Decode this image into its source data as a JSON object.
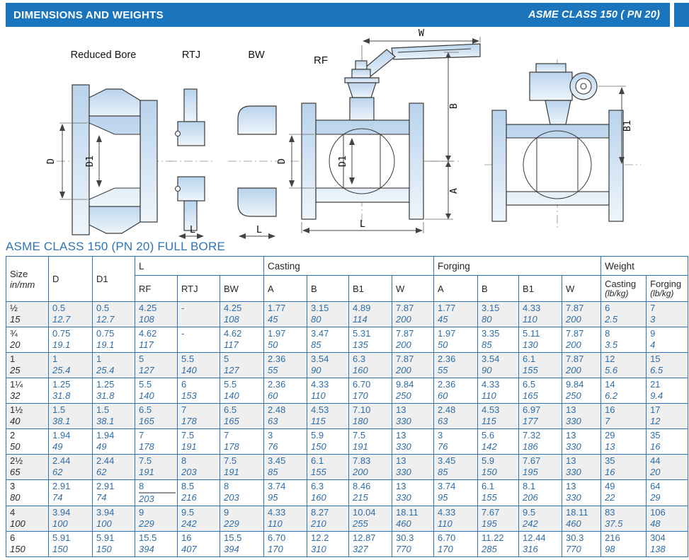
{
  "header": {
    "title": "DIMENSIONS AND WEIGHTS",
    "right_title": "ASME CLASS 150 ( PN 20)"
  },
  "colors": {
    "banner_blue": "#1B75BC",
    "table_border_blue": "#2E75B6",
    "value_blue": "#2F6EA8",
    "row_stripe": "#EFEFEF",
    "drawing_fill": "#C9DCF0"
  },
  "drawings": {
    "fig1_label": "Reduced Bore",
    "fig2_label": "RTJ",
    "fig3_label": "BW",
    "fig4_label": "RF",
    "dim_w": "W",
    "dim_b": "B",
    "dim_a": "A",
    "dim_b1": "B1",
    "dim_d": "D",
    "dim_d1": "D1",
    "dim_l": "L"
  },
  "section_title": "ASME CLASS 150 (PN 20) FULL BORE",
  "table": {
    "headers": {
      "size1": "Size",
      "size2": "in/mm",
      "d": "D",
      "d1": "D1",
      "l": "L",
      "casting": "Casting",
      "forging": "Forging",
      "weight": "Weight",
      "l_cols": [
        "RF",
        "RTJ",
        "BW"
      ],
      "cast_cols": [
        "A",
        "B",
        "B1",
        "W"
      ],
      "forg_cols": [
        "A",
        "B",
        "B1",
        "W"
      ],
      "weight_cols": [
        {
          "name": "Casting",
          "unit": "(lb/kg)"
        },
        {
          "name": "Forging",
          "unit": "(lb/kg)"
        }
      ]
    },
    "artifact_underline_cell": [
      7,
      2
    ],
    "rows": [
      {
        "size_in": "½",
        "size_mm": "15",
        "cells": [
          [
            "0.5",
            "12.7"
          ],
          [
            "0.5",
            "12.7"
          ],
          [
            "4.25",
            "108"
          ],
          [
            "-",
            ""
          ],
          [
            "4.25",
            "108"
          ],
          [
            "1.77",
            "45"
          ],
          [
            "3.15",
            "80"
          ],
          [
            "4.89",
            "114"
          ],
          [
            "7.87",
            "200"
          ],
          [
            "1.77",
            "45"
          ],
          [
            "3.15",
            "80"
          ],
          [
            "4.33",
            "110"
          ],
          [
            "7.87",
            "200"
          ],
          [
            "6",
            "2.5"
          ],
          [
            "7",
            "3"
          ]
        ]
      },
      {
        "size_in": "¾",
        "size_mm": "20",
        "cells": [
          [
            "0.75",
            "19.1"
          ],
          [
            "0.75",
            "19.1"
          ],
          [
            "4.62",
            "117"
          ],
          [
            "-",
            ""
          ],
          [
            "4.62",
            "117"
          ],
          [
            "1.97",
            "50"
          ],
          [
            "3.47",
            "85"
          ],
          [
            "5.31",
            "135"
          ],
          [
            "7.87",
            "200"
          ],
          [
            "1.97",
            "50"
          ],
          [
            "3.35",
            "85"
          ],
          [
            "5.11",
            "130"
          ],
          [
            "7.87",
            "200"
          ],
          [
            "8",
            "3.5"
          ],
          [
            "9",
            "4"
          ]
        ]
      },
      {
        "size_in": "1",
        "size_mm": "25",
        "cells": [
          [
            "1",
            "25.4"
          ],
          [
            "1",
            "25.4"
          ],
          [
            "5",
            "127"
          ],
          [
            "5.5",
            "140"
          ],
          [
            "5",
            "127"
          ],
          [
            "2.36",
            "55"
          ],
          [
            "3.54",
            "90"
          ],
          [
            "6.3",
            "160"
          ],
          [
            "7.87",
            "200"
          ],
          [
            "2.36",
            "55"
          ],
          [
            "3.54",
            "90"
          ],
          [
            "6.1",
            "155"
          ],
          [
            "7.87",
            "200"
          ],
          [
            "12",
            "5.6"
          ],
          [
            "15",
            "6.5"
          ]
        ]
      },
      {
        "size_in": "1¼",
        "size_mm": "32",
        "cells": [
          [
            "1.25",
            "31.8"
          ],
          [
            "1.25",
            "31.8"
          ],
          [
            "5.5",
            "140"
          ],
          [
            "6",
            "153"
          ],
          [
            "5.5",
            "140"
          ],
          [
            "2.36",
            "60"
          ],
          [
            "4.33",
            "110"
          ],
          [
            "6.70",
            "170"
          ],
          [
            "9.84",
            "250"
          ],
          [
            "2.36",
            "60"
          ],
          [
            "4.33",
            "110"
          ],
          [
            "6.5",
            "165"
          ],
          [
            "9.84",
            "250"
          ],
          [
            "14",
            "6.2"
          ],
          [
            "21",
            "9.4"
          ]
        ]
      },
      {
        "size_in": "1½",
        "size_mm": "40",
        "cells": [
          [
            "1.5",
            "38.1"
          ],
          [
            "1.5",
            "38.1"
          ],
          [
            "6.5",
            "165"
          ],
          [
            "7",
            "178"
          ],
          [
            "6.5",
            "165"
          ],
          [
            "2.48",
            "63"
          ],
          [
            "4.53",
            "115"
          ],
          [
            "7.10",
            "180"
          ],
          [
            "13",
            "330"
          ],
          [
            "2.48",
            "63"
          ],
          [
            "4.53",
            "115"
          ],
          [
            "6.97",
            "177"
          ],
          [
            "13",
            "330"
          ],
          [
            "16",
            "7"
          ],
          [
            "17",
            "12"
          ]
        ]
      },
      {
        "size_in": "2",
        "size_mm": "50",
        "cells": [
          [
            "1.94",
            "49"
          ],
          [
            "1.94",
            "49"
          ],
          [
            "7",
            "178"
          ],
          [
            "7.5",
            "191"
          ],
          [
            "7",
            "178"
          ],
          [
            "3",
            "76"
          ],
          [
            "5.9",
            "150"
          ],
          [
            "7.5",
            "191"
          ],
          [
            "13",
            "330"
          ],
          [
            "3",
            "76"
          ],
          [
            "5.6",
            "142"
          ],
          [
            "7.32",
            "186"
          ],
          [
            "13",
            "330"
          ],
          [
            "29",
            "13"
          ],
          [
            "35",
            "16"
          ]
        ]
      },
      {
        "size_in": "2½",
        "size_mm": "65",
        "cells": [
          [
            "2.44",
            "62"
          ],
          [
            "2.44",
            "62"
          ],
          [
            "7.5",
            "191"
          ],
          [
            "8",
            "203"
          ],
          [
            "7.5",
            "191"
          ],
          [
            "3.45",
            "85"
          ],
          [
            "6.1",
            "155"
          ],
          [
            "7.83",
            "200"
          ],
          [
            "13",
            "330"
          ],
          [
            "3.45",
            "85"
          ],
          [
            "5.9",
            "150"
          ],
          [
            "7.67",
            "195"
          ],
          [
            "13",
            "330"
          ],
          [
            "35",
            "16"
          ],
          [
            "44",
            "20"
          ]
        ]
      },
      {
        "size_in": "3",
        "size_mm": "80",
        "cells": [
          [
            "2.91",
            "74"
          ],
          [
            "2.91",
            "74"
          ],
          [
            "8",
            "203"
          ],
          [
            "8.5",
            "216"
          ],
          [
            "8",
            "203"
          ],
          [
            "3.74",
            "95"
          ],
          [
            "6.3",
            "160"
          ],
          [
            "8.46",
            "215"
          ],
          [
            "13",
            "330"
          ],
          [
            "3.74",
            "95"
          ],
          [
            "6.1",
            "155"
          ],
          [
            "8.1",
            "206"
          ],
          [
            "13",
            "330"
          ],
          [
            "49",
            "22"
          ],
          [
            "64",
            "29"
          ]
        ]
      },
      {
        "size_in": "4",
        "size_mm": "100",
        "cells": [
          [
            "3.94",
            "100"
          ],
          [
            "3.94",
            "100"
          ],
          [
            "9",
            "229"
          ],
          [
            "9.5",
            "242"
          ],
          [
            "9",
            "229"
          ],
          [
            "4.33",
            "110"
          ],
          [
            "8.27",
            "210"
          ],
          [
            "10.04",
            "255"
          ],
          [
            "18.11",
            "460"
          ],
          [
            "4.33",
            "110"
          ],
          [
            "7.67",
            "195"
          ],
          [
            "9.5",
            "242"
          ],
          [
            "18.11",
            "460"
          ],
          [
            "83",
            "37.5"
          ],
          [
            "106",
            "48"
          ]
        ]
      },
      {
        "size_in": "6",
        "size_mm": "150",
        "cells": [
          [
            "5.91",
            "150"
          ],
          [
            "5.91",
            "150"
          ],
          [
            "15.5",
            "394"
          ],
          [
            "16",
            "407"
          ],
          [
            "15.5",
            "394"
          ],
          [
            "6.70",
            "170"
          ],
          [
            "12.2",
            "310"
          ],
          [
            "12.87",
            "327"
          ],
          [
            "30.3",
            "770"
          ],
          [
            "6.70",
            "170"
          ],
          [
            "11.22",
            "285"
          ],
          [
            "12.44",
            "316"
          ],
          [
            "30.3",
            "770"
          ],
          [
            "216",
            "98"
          ],
          [
            "304",
            "138"
          ]
        ]
      }
    ]
  }
}
